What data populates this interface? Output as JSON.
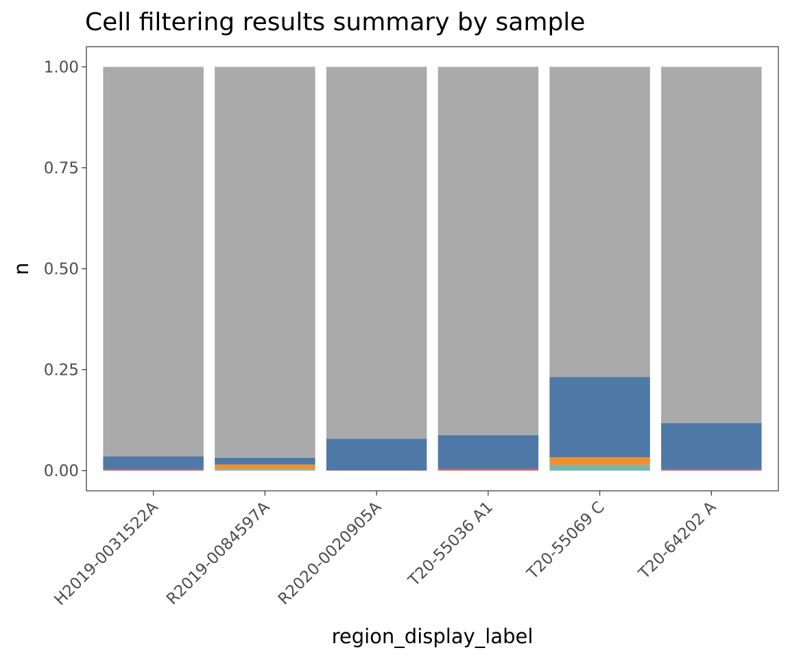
{
  "chart_data": {
    "type": "bar",
    "stacked": true,
    "title": "Cell filtering results summary by sample",
    "xlabel": "region_display_label",
    "ylabel": "n",
    "ylim": [
      -0.05,
      1.05
    ],
    "yticks": [
      "0.00",
      "0.25",
      "0.50",
      "0.75",
      "1.00"
    ],
    "grid": false,
    "legend": "none",
    "categories": [
      "H2019-0031522A",
      "R2019-0084597A",
      "R2020-0020905A",
      "T20-55036 A1",
      "T20-55069 C",
      "T20-64202 A"
    ],
    "series": [
      {
        "color": "#76b7b2",
        "values": [
          0.0,
          0.004,
          0.0,
          0.0,
          0.014,
          0.0
        ]
      },
      {
        "color": "#e15759",
        "values": [
          0.003,
          0.0,
          0.001,
          0.004,
          0.0,
          0.003
        ]
      },
      {
        "color": "#f28e2b",
        "values": [
          0.0,
          0.011,
          0.0,
          0.0,
          0.019,
          0.0
        ]
      },
      {
        "color": "#4e79a7",
        "values": [
          0.032,
          0.017,
          0.078,
          0.084,
          0.199,
          0.115
        ]
      },
      {
        "color": "#aaaaaa",
        "values": [
          0.965,
          0.968,
          0.921,
          0.912,
          0.768,
          0.882
        ]
      }
    ]
  }
}
